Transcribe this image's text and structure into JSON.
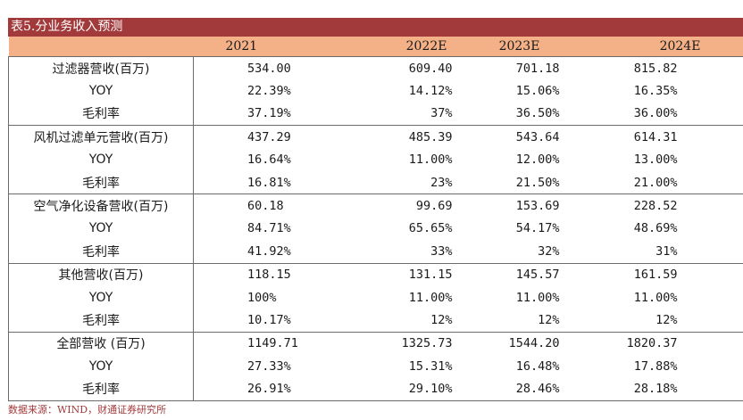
{
  "title": "表5.分业务收入预测",
  "columns": [
    "",
    "2021",
    "2022E",
    "2023E",
    "2024E"
  ],
  "groups": [
    {
      "rows": [
        {
          "label": "过滤器营收(百万)",
          "values": [
            "534.00",
            "609.40",
            "701.18",
            "815.82"
          ]
        },
        {
          "label": "YOY",
          "values": [
            "22.39%",
            "14.12%",
            "15.06%",
            "16.35%"
          ]
        },
        {
          "label": "毛利率",
          "values": [
            "37.19%",
            "37%",
            "36.50%",
            "36.00%"
          ]
        }
      ]
    },
    {
      "rows": [
        {
          "label": "风机过滤单元营收(百万)",
          "values": [
            "437.29",
            "485.39",
            "543.64",
            "614.31"
          ]
        },
        {
          "label": "YOY",
          "values": [
            "16.64%",
            "11.00%",
            "12.00%",
            "13.00%"
          ]
        },
        {
          "label": "毛利率",
          "values": [
            "16.81%",
            "23%",
            "21.50%",
            "21.00%"
          ]
        }
      ]
    },
    {
      "rows": [
        {
          "label": "空气净化设备营收(百万)",
          "values": [
            "60.18",
            "99.69",
            "153.69",
            "228.52"
          ]
        },
        {
          "label": "YOY",
          "values": [
            "84.71%",
            "65.65%",
            "54.17%",
            "48.69%"
          ]
        },
        {
          "label": "毛利率",
          "values": [
            "41.92%",
            "33%",
            "32%",
            "31%"
          ]
        }
      ]
    },
    {
      "rows": [
        {
          "label": "其他营收(百万)",
          "values": [
            "118.15",
            "131.15",
            "145.57",
            "161.59"
          ]
        },
        {
          "label": "YOY",
          "values": [
            "100%",
            "11.00%",
            "11.00%",
            "11.00%"
          ]
        },
        {
          "label": "毛利率",
          "values": [
            "10.17%",
            "12%",
            "12%",
            "12%"
          ]
        }
      ]
    },
    {
      "rows": [
        {
          "label": "全部营收 (百万)",
          "values": [
            "1149.71",
            "1325.73",
            "1544.20",
            "1820.37"
          ]
        },
        {
          "label": "YOY",
          "values": [
            "27.33%",
            "15.31%",
            "16.48%",
            "17.88%"
          ]
        },
        {
          "label": "毛利率",
          "values": [
            "26.91%",
            "29.10%",
            "28.46%",
            "28.18%"
          ]
        }
      ]
    }
  ],
  "source": "数据来源：WIND，财通证券研究所"
}
